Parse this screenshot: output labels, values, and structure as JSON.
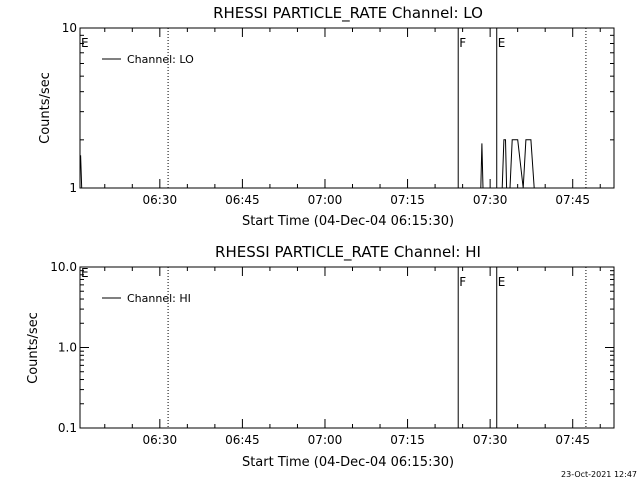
{
  "chart_data": [
    {
      "type": "line",
      "title": "RHESSI PARTICLE_RATE Channel: LO",
      "xlabel": "Start Time (04-Dec-04 06:15:30)",
      "ylabel": "Counts/sec",
      "yscale": "log",
      "xlim": [
        15.5,
        112.5
      ],
      "ylim": [
        1,
        10
      ],
      "x_unit": "minutes after 06:00",
      "x_ticks": [
        {
          "x": 30,
          "label": "06:30"
        },
        {
          "x": 45,
          "label": "06:45"
        },
        {
          "x": 60,
          "label": "07:00"
        },
        {
          "x": 75,
          "label": "07:15"
        },
        {
          "x": 90,
          "label": "07:30"
        },
        {
          "x": 105,
          "label": "07:45"
        }
      ],
      "y_ticks": [
        {
          "y": 1,
          "label": "1"
        },
        {
          "y": 10,
          "label": "10"
        }
      ],
      "legend": {
        "position": "top-left",
        "entries": [
          "Channel: LO"
        ]
      },
      "grid": false,
      "series": [
        {
          "name": "Channel: LO",
          "x": [
            15.6,
            15.8,
            16.0,
            88.3,
            88.5,
            88.7,
            92.2,
            92.5,
            92.8,
            93.0,
            93.6,
            94.0,
            95.0,
            96.0,
            96.5,
            97.4,
            98.0,
            98.5
          ],
          "y": [
            1.6,
            1.0,
            1.0,
            1.0,
            1.9,
            1.0,
            1.0,
            2.0,
            2.0,
            1.0,
            1.0,
            2.0,
            2.0,
            1.0,
            2.0,
            2.0,
            1.0,
            1.0
          ]
        }
      ],
      "vertical_lines": [
        {
          "x": 31.5,
          "style": "dotted",
          "label": ""
        },
        {
          "x": 84.2,
          "style": "solid",
          "label": "F"
        },
        {
          "x": 91.2,
          "style": "solid",
          "label": "E"
        },
        {
          "x": 107.4,
          "style": "dotted",
          "label": ""
        }
      ],
      "edge_label": "E"
    },
    {
      "type": "line",
      "title": "RHESSI PARTICLE_RATE Channel: HI",
      "xlabel": "Start Time (04-Dec-04 06:15:30)",
      "ylabel": "Counts/sec",
      "yscale": "log",
      "xlim": [
        15.5,
        112.5
      ],
      "ylim": [
        0.1,
        10
      ],
      "x_unit": "minutes after 06:00",
      "x_ticks": [
        {
          "x": 30,
          "label": "06:30"
        },
        {
          "x": 45,
          "label": "06:45"
        },
        {
          "x": 60,
          "label": "07:00"
        },
        {
          "x": 75,
          "label": "07:15"
        },
        {
          "x": 90,
          "label": "07:30"
        },
        {
          "x": 105,
          "label": "07:45"
        }
      ],
      "y_ticks": [
        {
          "y": 0.1,
          "label": "0.1"
        },
        {
          "y": 1,
          "label": "1.0"
        },
        {
          "y": 10,
          "label": "10.0"
        }
      ],
      "legend": {
        "position": "top-left",
        "entries": [
          "Channel: HI"
        ]
      },
      "grid": false,
      "series": [
        {
          "name": "Channel: HI",
          "x": [],
          "y": []
        }
      ],
      "vertical_lines": [
        {
          "x": 31.5,
          "style": "dotted",
          "label": ""
        },
        {
          "x": 84.2,
          "style": "solid",
          "label": "F"
        },
        {
          "x": 91.2,
          "style": "solid",
          "label": "E"
        },
        {
          "x": 107.4,
          "style": "dotted",
          "label": ""
        }
      ],
      "edge_label": "E"
    }
  ],
  "timestamp": "23-Oct-2021 12:47"
}
